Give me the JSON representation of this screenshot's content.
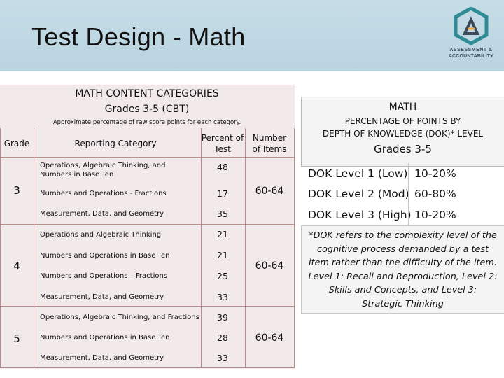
{
  "header": {
    "title": "Test Design - Math",
    "logo_line1": "ASSESSMENT &",
    "logo_line2": "ACCOUNTABILITY"
  },
  "content_table": {
    "title_line1": "MATH CONTENT CATEGORIES",
    "title_line2": "Grades 3-5 (CBT)",
    "subtitle": "Approximate percentage of raw score points for each category.",
    "headers": {
      "grade": "Grade",
      "category": "Reporting Category",
      "percent": "Percent of Test",
      "items": "Number of Items"
    },
    "grades": [
      {
        "grade": "3",
        "items": "60-64",
        "rows": [
          {
            "category": "Operations, Algebraic Thinking, and Numbers in Base Ten",
            "percent": "48"
          },
          {
            "category": "Numbers and Operations - Fractions",
            "percent": "17"
          },
          {
            "category": "Measurement, Data, and Geometry",
            "percent": "35"
          }
        ]
      },
      {
        "grade": "4",
        "items": "60-64",
        "rows": [
          {
            "category": "Operations and Algebraic Thinking",
            "percent": "21"
          },
          {
            "category": "Numbers and Operations in Base Ten",
            "percent": "21"
          },
          {
            "category": "Numbers and Operations – Fractions",
            "percent": "25"
          },
          {
            "category": "Measurement, Data, and Geometry",
            "percent": "33"
          }
        ]
      },
      {
        "grade": "5",
        "items": "60-64",
        "rows": [
          {
            "category": "Operations, Algebraic Thinking, and Fractions",
            "percent": "39"
          },
          {
            "category": "Numbers and Operations in Base Ten",
            "percent": "28"
          },
          {
            "category": "Measurement, Data, and Geometry",
            "percent": "33"
          }
        ]
      }
    ]
  },
  "dok_panel": {
    "title": "MATH",
    "subtitle_line1": "PERCENTAGE OF POINTS BY",
    "subtitle_line2": "DEPTH OF KNOWLEDGE (DOK)* LEVEL",
    "grades": "Grades 3-5",
    "levels": [
      {
        "label": "DOK Level 1 (Low)",
        "percent": "10-20%"
      },
      {
        "label": "DOK Level 2 (Mod)",
        "percent": "60-80%"
      },
      {
        "label": "DOK Level 3 (High)",
        "percent": "10-20%"
      }
    ],
    "footnote": "*DOK refers to the complexity level of the cognitive process demanded by a test item rather than the difficulty of the item. Level 1: Recall and Reproduction, Level 2: Skills and Concepts, and Level 3: Strategic Thinking"
  },
  "colors": {
    "header_band": "#bcd6e2",
    "table_bg": "#f2eaea",
    "table_border": "#ba8b8b",
    "logo_teal": "#2f8c95",
    "logo_dark": "#3c4b5a"
  }
}
